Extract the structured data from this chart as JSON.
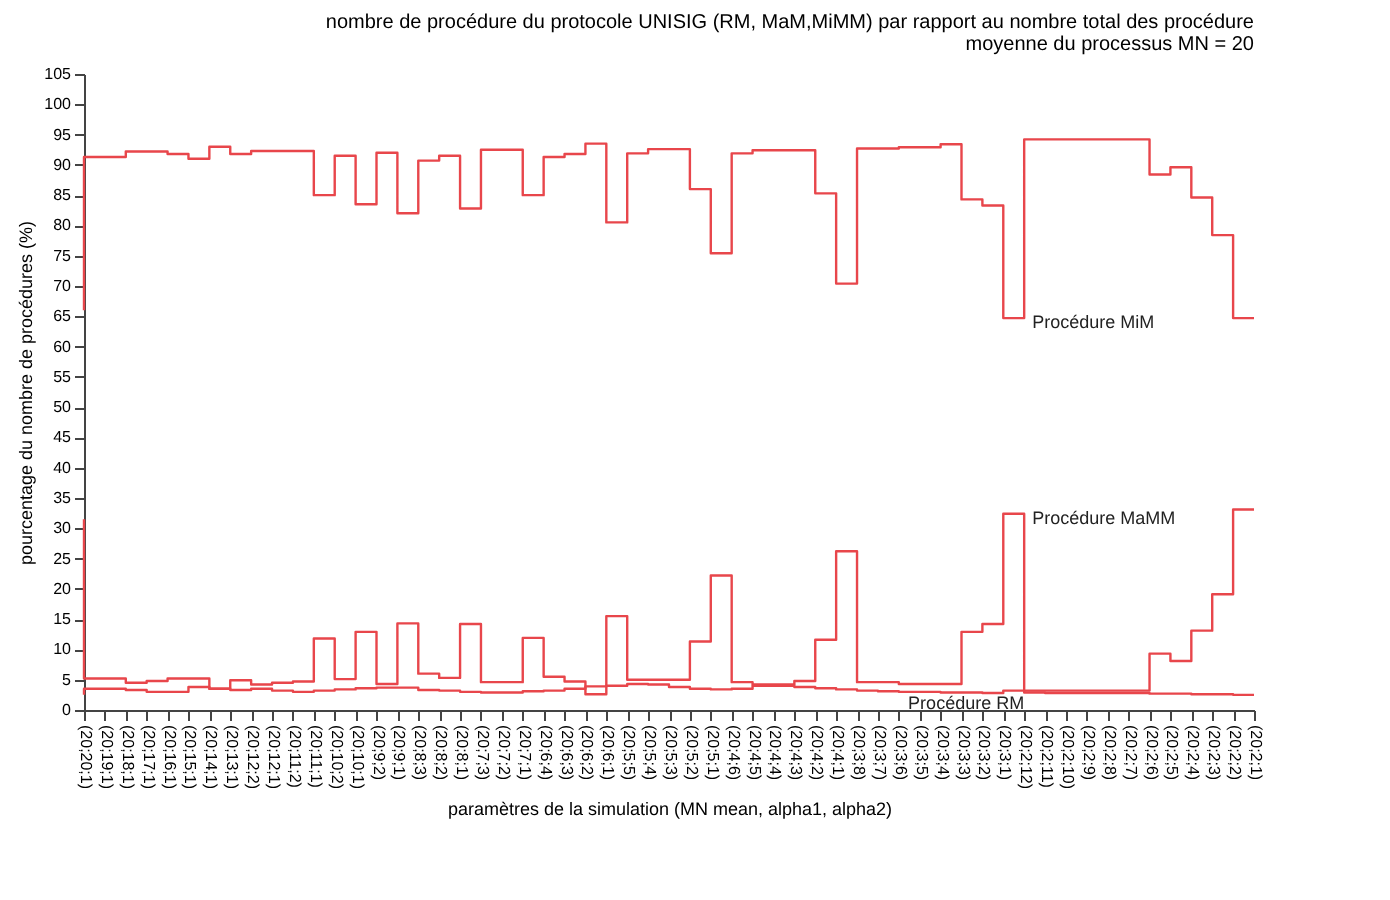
{
  "chart_data": {
    "type": "step",
    "title": "nombre de procédure du protocole UNISIG (RM, MaM,MiMM) par rapport au nombre total des procédure",
    "subtitle": "moyenne du processus MN = 20",
    "xlabel": "paramètres de la simulation (MN mean, alpha1, alpha2)",
    "ylabel": "pourcentage du nombre de procédures (%)",
    "categories": [
      "(20;20;1)",
      "(20;19;1)",
      "(20;18;1)",
      "(20;17;1)",
      "(20;16;1)",
      "(20;15;1)",
      "(20;14;1)",
      "(20;13;1)",
      "(20;12;2)",
      "(20;12;1)",
      "(20;11;2)",
      "(20;11;1)",
      "(20;10;2)",
      "(20;10;1)",
      "(20;9;2)",
      "(20;9;1)",
      "(20;8;3)",
      "(20;8;2)",
      "(20;8;1)",
      "(20;7;3)",
      "(20;7;2)",
      "(20;7;1)",
      "(20;6;4)",
      "(20;6;3)",
      "(20;6;2)",
      "(20;6;1)",
      "(20;5;5)",
      "(20;5;4)",
      "(20;5;3)",
      "(20;5;2)",
      "(20;5;1)",
      "(20;4;6)",
      "(20;4;5)",
      "(20;4;4)",
      "(20;4;3)",
      "(20;4;2)",
      "(20;4;1)",
      "(20;3;8)",
      "(20;3;7)",
      "(20;3;6)",
      "(20;3;5)",
      "(20;3;4)",
      "(20;3;3)",
      "(20;3;2)",
      "(20;3;1)",
      "(20;2;12)",
      "(20;2;11)",
      "(20;2;10)",
      "(20;2;9)",
      "(20;2;8)",
      "(20;2;7)",
      "(20;2;6)",
      "(20;2;5)",
      "(20;2;4)",
      "(20;2;3)",
      "(20;2;2)",
      "(20;2;1)"
    ],
    "series": [
      {
        "name": "Procédure MiM",
        "color": "#e8464b",
        "values": [
          66,
          91.3,
          91.3,
          92.2,
          92.2,
          91.8,
          91,
          93,
          91.8,
          92.3,
          92.3,
          92.3,
          85,
          91.5,
          83.5,
          92,
          82,
          90.7,
          91.5,
          82.8,
          92.5,
          92.5,
          85,
          91.3,
          91.8,
          93.5,
          80.5,
          91.9,
          92.6,
          92.6,
          86,
          75.4,
          91.9,
          92.4,
          92.4,
          92.4,
          85.3,
          70.4,
          92.7,
          92.7,
          92.9,
          92.9,
          93.4,
          84.3,
          83.3,
          64.7,
          94.2,
          94.2,
          94.2,
          94.2,
          94.2,
          94.2,
          88.4,
          89.6,
          84.6,
          78.4,
          64.7
        ]
      },
      {
        "name": "Procédure MaMM",
        "color": "#e8464b",
        "values": [
          31.5,
          5.2,
          5.2,
          4.5,
          4.8,
          5.2,
          5.2,
          3.5,
          4.9,
          4.2,
          4.5,
          4.7,
          11.8,
          5.1,
          12.9,
          4.3,
          14.3,
          6,
          5.3,
          14.2,
          4.6,
          4.6,
          11.9,
          5.5,
          4.7,
          2.6,
          15.5,
          5,
          5,
          5,
          11.3,
          22.2,
          4.6,
          4.2,
          4.2,
          4.8,
          11.6,
          26.2,
          4.6,
          4.6,
          4.3,
          4.3,
          4.3,
          12.9,
          14.2,
          32.4,
          3.2,
          3.2,
          3.2,
          3.2,
          3.2,
          3.2,
          9.3,
          8.1,
          13.1,
          19.1,
          33.1
        ]
      },
      {
        "name": "Procédure RM",
        "color": "#e8464b",
        "values": [
          2.5,
          3.5,
          3.5,
          3.3,
          3,
          3,
          3.8,
          3.5,
          3.3,
          3.5,
          3.2,
          3,
          3.2,
          3.4,
          3.6,
          3.7,
          3.7,
          3.3,
          3.2,
          3,
          2.9,
          2.9,
          3.1,
          3.2,
          3.5,
          3.9,
          4,
          4.3,
          4.2,
          3.8,
          3.5,
          3.4,
          3.5,
          4,
          4,
          3.8,
          3.6,
          3.4,
          3.2,
          3.1,
          3,
          3,
          2.9,
          2.9,
          2.8,
          3.2,
          2.9,
          2.8,
          2.8,
          2.8,
          2.8,
          2.8,
          2.7,
          2.7,
          2.6,
          2.6,
          2.5
        ]
      }
    ],
    "ylim": [
      0,
      105
    ],
    "yticks": [
      0,
      5,
      10,
      15,
      20,
      25,
      30,
      35,
      40,
      45,
      50,
      55,
      60,
      65,
      70,
      75,
      80,
      85,
      90,
      95,
      100,
      105
    ],
    "grid": false,
    "legend": false,
    "marker": "none",
    "line_style": "solid"
  }
}
